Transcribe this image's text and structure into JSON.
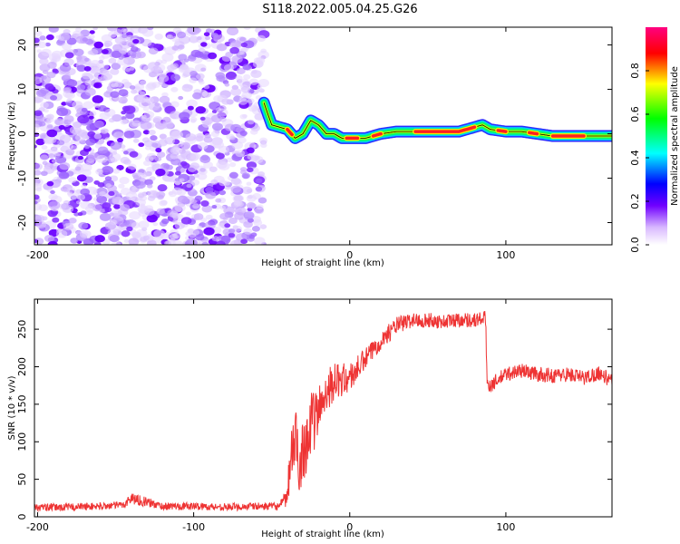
{
  "title": "S118.2022.005.04.25.G26",
  "chart_data": [
    {
      "type": "heatmap",
      "xlabel": "Height of straight line (km)",
      "ylabel": "Frequency (Hz)",
      "xlim": [
        -202,
        168
      ],
      "ylim": [
        -25,
        24
      ],
      "x_ticks": [
        -200,
        -100,
        0,
        100
      ],
      "y_ticks": [
        -20,
        -10,
        0,
        10,
        20
      ],
      "noise_region_x": [
        -202,
        -55
      ],
      "ridge": {
        "x": [
          -55,
          -50,
          -45,
          -40,
          -35,
          -30,
          -25,
          -20,
          -15,
          -10,
          -5,
          0,
          10,
          20,
          30,
          40,
          50,
          60,
          70,
          80,
          85,
          90,
          100,
          110,
          120,
          130,
          140,
          150,
          160,
          168
        ],
        "y": [
          7,
          2,
          1.5,
          1,
          -1,
          0,
          3,
          2,
          0,
          0,
          -1,
          -1,
          -1,
          0,
          0.5,
          0.5,
          0.5,
          0.5,
          0.5,
          1.5,
          2,
          1,
          0.5,
          0.5,
          0,
          -0.5,
          -0.5,
          -0.5,
          -0.5,
          -0.5
        ]
      },
      "colorbar": {
        "label": "Normalized spectral amplitude",
        "ticks": [
          "0.0",
          "0.2",
          "0.4",
          "0.6",
          "0.8"
        ],
        "range": [
          0,
          1
        ],
        "colors": [
          "#ffffff",
          "#8000ff",
          "#0000ff",
          "#00ffff",
          "#00ff00",
          "#ffff00",
          "#ff0000",
          "#ff0080"
        ]
      }
    },
    {
      "type": "line",
      "xlabel": "Height of straight line (km)",
      "ylabel": "SNR (10 * v/v)",
      "xlim": [
        -202,
        168
      ],
      "ylim": [
        0,
        290
      ],
      "x_ticks": [
        -200,
        -100,
        0,
        100
      ],
      "y_ticks": [
        0,
        50,
        100,
        150,
        200,
        250
      ],
      "color": "#ee3333",
      "series": [
        {
          "x": [
            -202,
            -180,
            -160,
            -145,
            -140,
            -120,
            -100,
            -80,
            -60,
            -45,
            -40,
            -38,
            -35,
            -32,
            -30,
            -25,
            -20,
            -15,
            -10,
            0,
            10,
            20,
            30,
            40,
            50,
            60,
            70,
            80,
            87,
            88,
            90,
            100,
            110,
            120,
            130,
            140,
            150,
            160,
            168
          ],
          "y": [
            12,
            13,
            14,
            16,
            25,
            14,
            14,
            13,
            14,
            14,
            25,
            80,
            100,
            75,
            90,
            120,
            140,
            170,
            180,
            185,
            210,
            235,
            255,
            262,
            262,
            260,
            263,
            262,
            265,
            180,
            175,
            190,
            195,
            190,
            188,
            190,
            185,
            192,
            180
          ],
          "noise": [
            5,
            5,
            5,
            5,
            8,
            5,
            5,
            5,
            5,
            5,
            15,
            40,
            45,
            45,
            45,
            45,
            35,
            30,
            25,
            20,
            15,
            12,
            12,
            10,
            10,
            10,
            10,
            10,
            10,
            10,
            10,
            10,
            10,
            10,
            10,
            10,
            10,
            10,
            10
          ]
        }
      ]
    }
  ]
}
